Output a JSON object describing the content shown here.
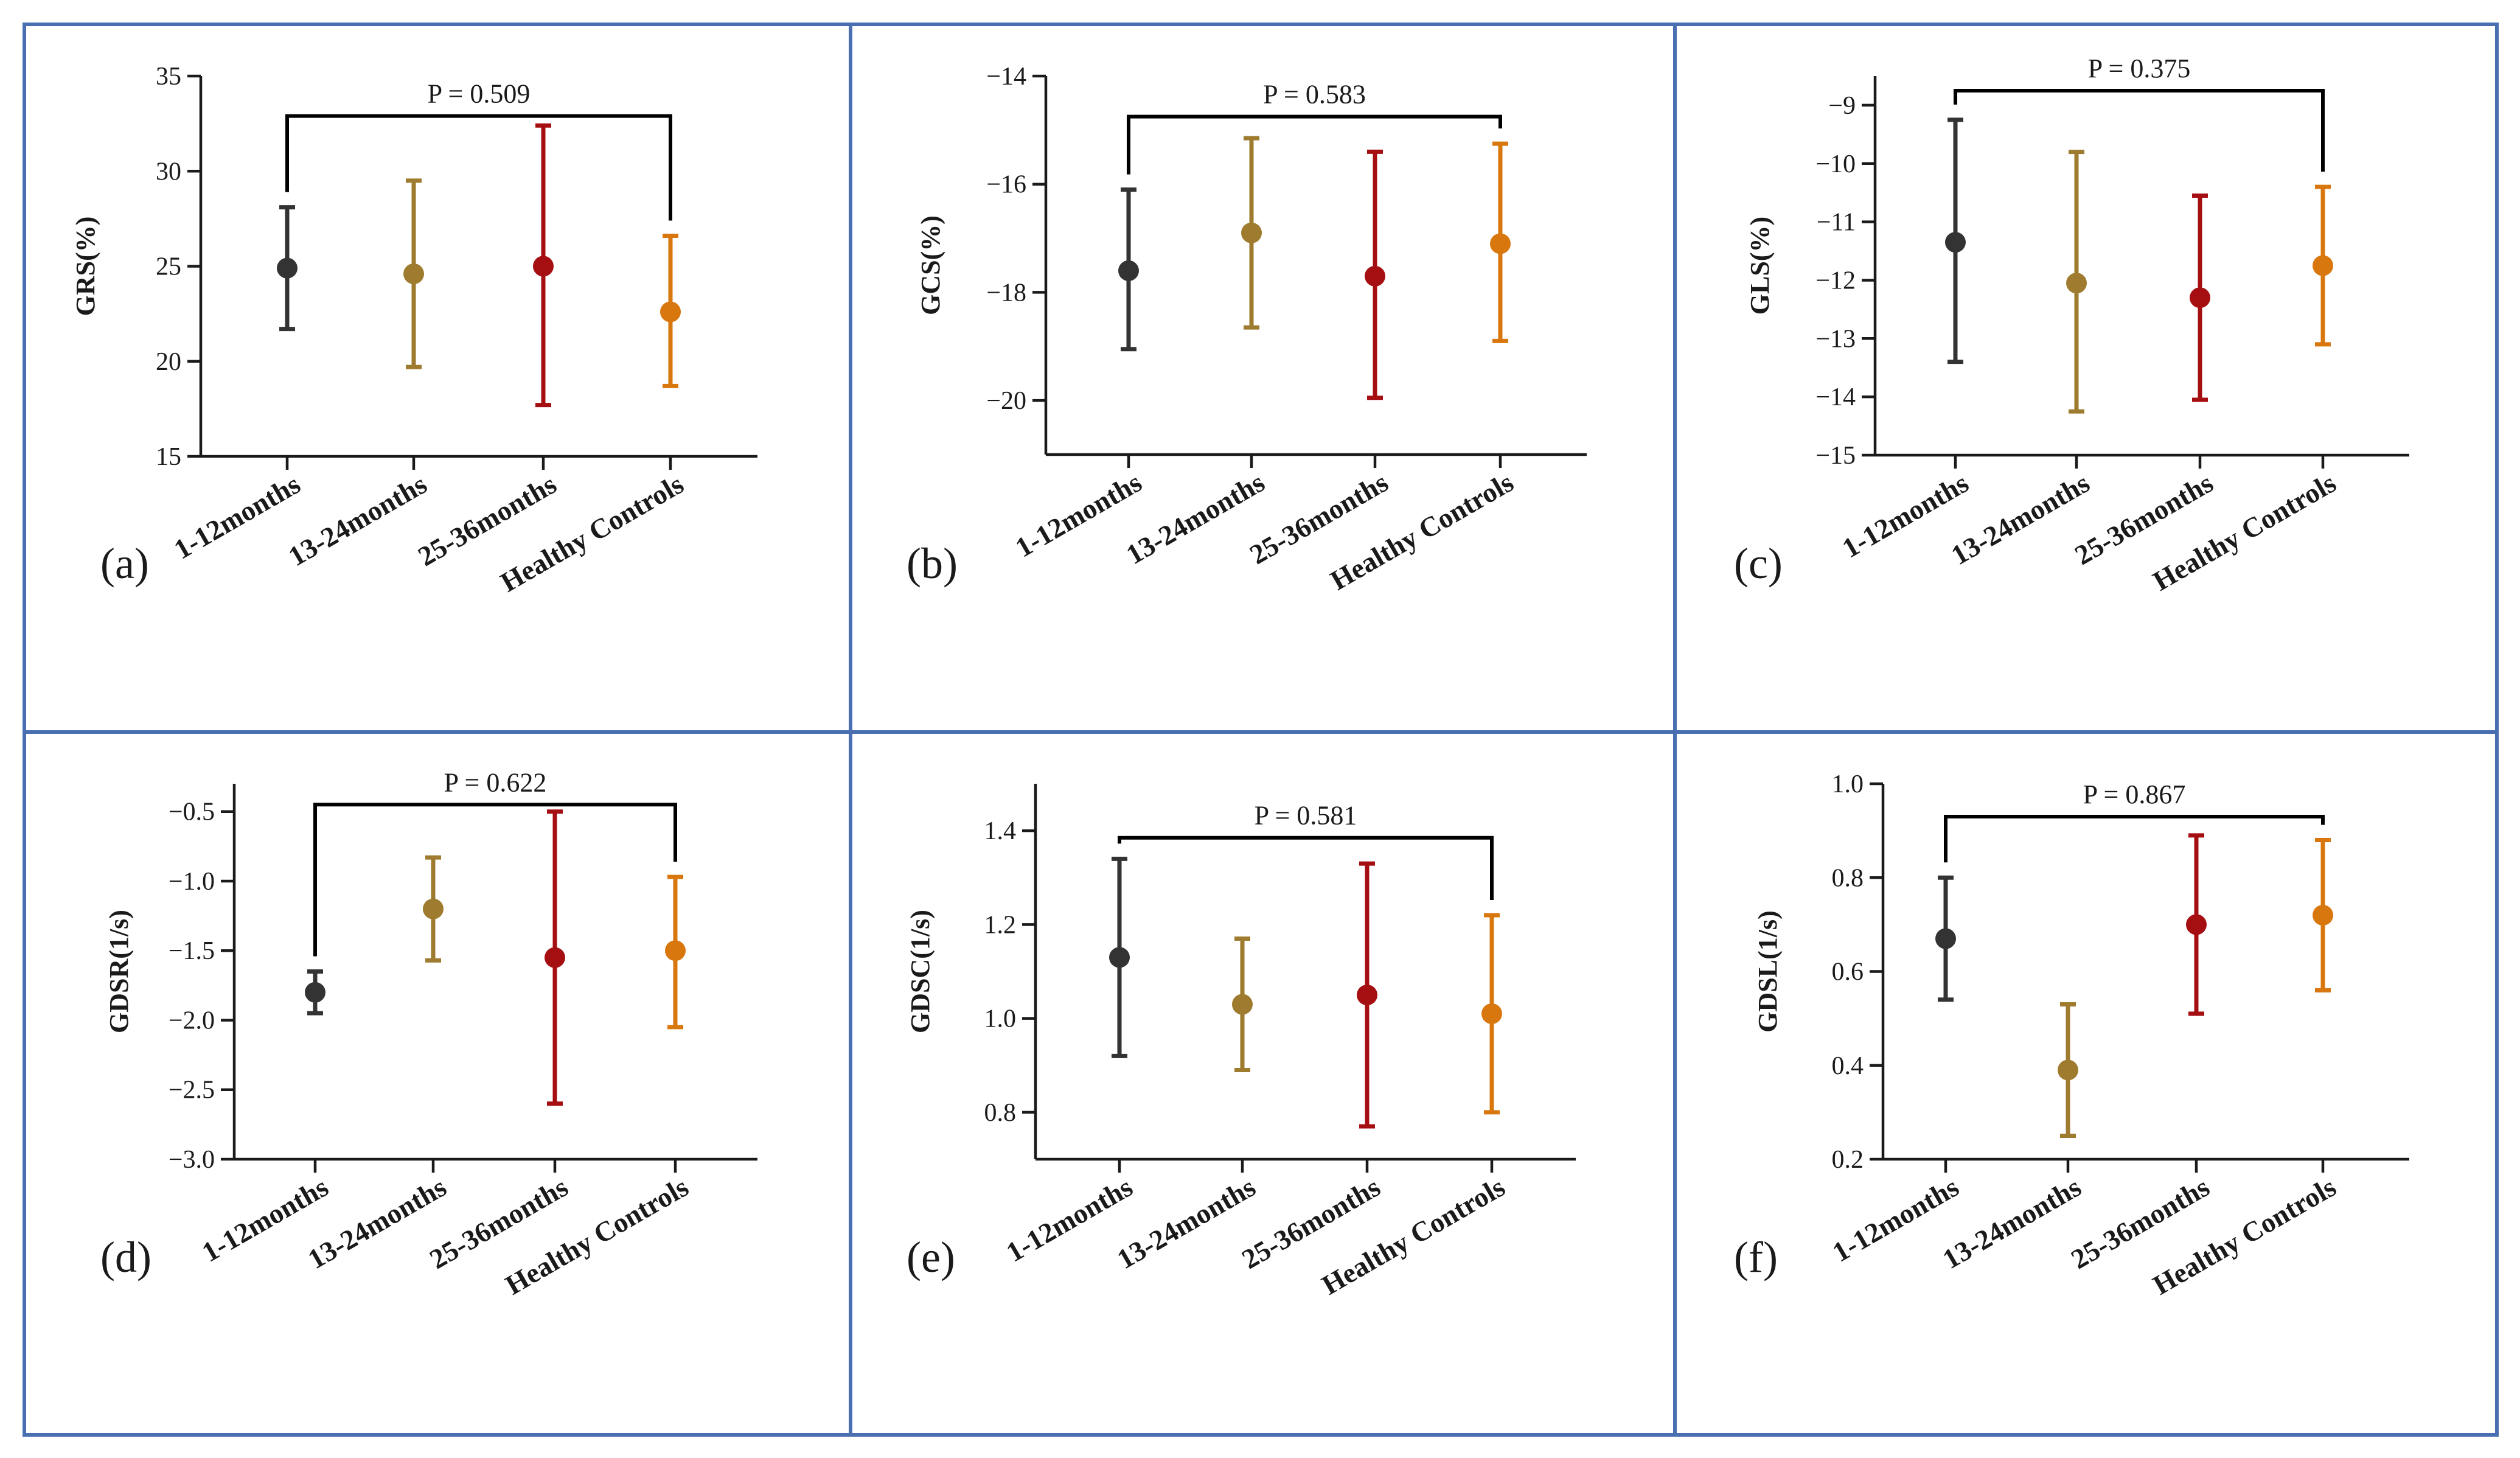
{
  "figure": {
    "colors": {
      "border": "#4a6fb0",
      "group_colors": [
        "#333333",
        "#9e7b2e",
        "#a50f12",
        "#d9770f"
      ]
    }
  },
  "chart_data": [
    {
      "type": "errorbar",
      "panel": "(a)",
      "ylabel": "GRS(%)",
      "categories": [
        "1-12months",
        "13-24months",
        "25-36months",
        "Healthy Controls"
      ],
      "mean": [
        24.9,
        24.6,
        25.0,
        22.6
      ],
      "lower": [
        21.7,
        19.7,
        17.7,
        18.7
      ],
      "upper": [
        28.1,
        29.5,
        32.4,
        26.6
      ],
      "ylim": [
        15,
        35
      ],
      "yticks": [
        15,
        20,
        25,
        30,
        35
      ],
      "ytick_labels": [
        "15",
        "20",
        "25",
        "30",
        "35"
      ],
      "p_label": "P = 0.509",
      "bracket_y": 32.9
    },
    {
      "type": "errorbar",
      "panel": "(b)",
      "ylabel": "GCS(%)",
      "categories": [
        "1-12months",
        "13-24months",
        "25-36months",
        "Healthy Controls"
      ],
      "mean": [
        -17.6,
        -16.9,
        -17.7,
        -17.1
      ],
      "lower": [
        -19.05,
        -18.65,
        -19.95,
        -18.9
      ],
      "upper": [
        -16.1,
        -15.15,
        -15.4,
        -15.25
      ],
      "ylim": [
        -21,
        -14
      ],
      "yticks": [
        -20,
        -18,
        -16,
        -14
      ],
      "ytick_labels": [
        "−20",
        "−18",
        "−16",
        "−14"
      ],
      "p_label": "P = 0.583",
      "bracket_y": -14.75
    },
    {
      "type": "errorbar",
      "panel": "(c)",
      "ylabel": "GLS(%)",
      "categories": [
        "1-12months",
        "13-24months",
        "25-36months",
        "Healthy Controls"
      ],
      "mean": [
        -11.35,
        -12.05,
        -12.3,
        -11.75
      ],
      "lower": [
        -13.4,
        -14.25,
        -14.05,
        -13.1
      ],
      "upper": [
        -9.25,
        -9.8,
        -10.55,
        -10.4
      ],
      "ylim": [
        -15,
        -8.5
      ],
      "yticks": [
        -15,
        -14,
        -13,
        -12,
        -11,
        -10,
        -9
      ],
      "ytick_labels": [
        "−15",
        "−14",
        "−13",
        "−12",
        "−11",
        "−10",
        "−9"
      ],
      "p_label": "P = 0.375",
      "bracket_y": -8.75
    },
    {
      "type": "errorbar",
      "panel": "(d)",
      "ylabel": "GDSR(1/s)",
      "categories": [
        "1-12months",
        "13-24months",
        "25-36months",
        "Healthy Controls"
      ],
      "mean": [
        -1.8,
        -1.2,
        -1.55,
        -1.5
      ],
      "lower": [
        -1.95,
        -1.57,
        -2.6,
        -2.05
      ],
      "upper": [
        -1.65,
        -0.83,
        -0.5,
        -0.97
      ],
      "ylim": [
        -3.0,
        -0.3
      ],
      "yticks": [
        -3.0,
        -2.5,
        -2.0,
        -1.5,
        -1.0,
        -0.5
      ],
      "ytick_labels": [
        "−3.0",
        "−2.5",
        "−2.0",
        "−1.5",
        "−1.0",
        "−0.5"
      ],
      "p_label": "P = 0.622",
      "bracket_y": -0.45
    },
    {
      "type": "errorbar",
      "panel": "(e)",
      "ylabel": "GDSC(1/s)",
      "categories": [
        "1-12months",
        "13-24months",
        "25-36months",
        "Healthy Controls"
      ],
      "mean": [
        1.13,
        1.03,
        1.05,
        1.01
      ],
      "lower": [
        0.92,
        0.89,
        0.77,
        0.8
      ],
      "upper": [
        1.34,
        1.17,
        1.33,
        1.22
      ],
      "ylim": [
        0.7,
        1.5
      ],
      "yticks": [
        0.8,
        1.0,
        1.2,
        1.4
      ],
      "ytick_labels": [
        "0.8",
        "1.0",
        "1.2",
        "1.4"
      ],
      "p_label": "P = 0.581",
      "bracket_y": 1.385
    },
    {
      "type": "errorbar",
      "panel": "(f)",
      "ylabel": "GDSL(1/s)",
      "categories": [
        "1-12months",
        "13-24months",
        "25-36months",
        "Healthy Controls"
      ],
      "mean": [
        0.67,
        0.39,
        0.7,
        0.72
      ],
      "lower": [
        0.54,
        0.25,
        0.51,
        0.56
      ],
      "upper": [
        0.8,
        0.53,
        0.89,
        0.88
      ],
      "ylim": [
        0.2,
        1.0
      ],
      "yticks": [
        0.2,
        0.4,
        0.6,
        0.8,
        1.0
      ],
      "ytick_labels": [
        "0.2",
        "0.4",
        "0.6",
        "0.8",
        "1.0"
      ],
      "p_label": "P = 0.867",
      "bracket_y": 0.93
    }
  ]
}
